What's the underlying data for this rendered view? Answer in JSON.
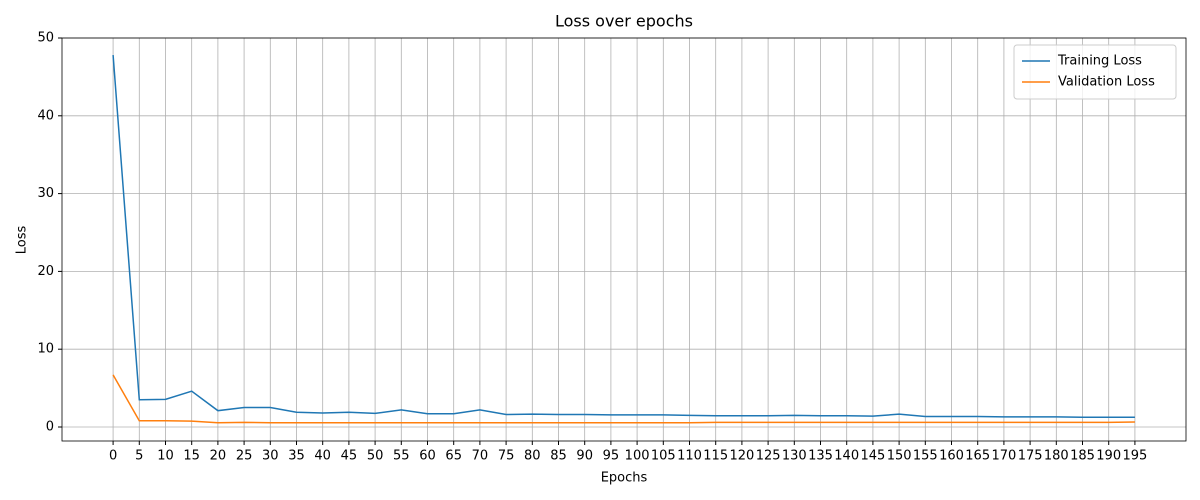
{
  "chart_data": {
    "type": "line",
    "title": "Loss over epochs",
    "x_label": "Epochs",
    "y_label": "Loss",
    "x": [
      0,
      5,
      10,
      15,
      20,
      25,
      30,
      35,
      40,
      45,
      50,
      55,
      60,
      65,
      70,
      75,
      80,
      85,
      90,
      95,
      100,
      105,
      110,
      115,
      120,
      125,
      130,
      135,
      140,
      145,
      150,
      155,
      160,
      165,
      170,
      175,
      180,
      185,
      190,
      195
    ],
    "series": [
      {
        "name": "Training Loss",
        "color": "#1f77b4",
        "values": [
          47.8,
          3.5,
          3.55,
          4.6,
          2.1,
          2.5,
          2.5,
          1.9,
          1.8,
          1.9,
          1.75,
          2.2,
          1.7,
          1.7,
          2.2,
          1.6,
          1.65,
          1.6,
          1.6,
          1.55,
          1.55,
          1.55,
          1.5,
          1.45,
          1.45,
          1.45,
          1.5,
          1.45,
          1.45,
          1.4,
          1.65,
          1.35,
          1.35,
          1.35,
          1.3,
          1.3,
          1.3,
          1.25,
          1.25,
          1.25
        ]
      },
      {
        "name": "Validation Loss",
        "color": "#ff7f0e",
        "values": [
          6.7,
          0.8,
          0.8,
          0.75,
          0.55,
          0.6,
          0.55,
          0.55,
          0.55,
          0.55,
          0.55,
          0.55,
          0.55,
          0.55,
          0.55,
          0.55,
          0.55,
          0.55,
          0.55,
          0.55,
          0.55,
          0.55,
          0.55,
          0.6,
          0.6,
          0.6,
          0.6,
          0.6,
          0.6,
          0.6,
          0.6,
          0.6,
          0.6,
          0.6,
          0.6,
          0.6,
          0.6,
          0.6,
          0.6,
          0.65
        ]
      }
    ],
    "xlim": [
      -9.75,
      204.75
    ],
    "ylim": [
      -1.8,
      50
    ],
    "xticks": [
      0,
      5,
      10,
      15,
      20,
      25,
      30,
      35,
      40,
      45,
      50,
      55,
      60,
      65,
      70,
      75,
      80,
      85,
      90,
      95,
      100,
      105,
      110,
      115,
      120,
      125,
      130,
      135,
      140,
      145,
      150,
      155,
      160,
      165,
      170,
      175,
      180,
      185,
      190,
      195
    ],
    "yticks": [
      0,
      10,
      20,
      30,
      40,
      50
    ],
    "grid": true,
    "legend": "upper-right"
  }
}
